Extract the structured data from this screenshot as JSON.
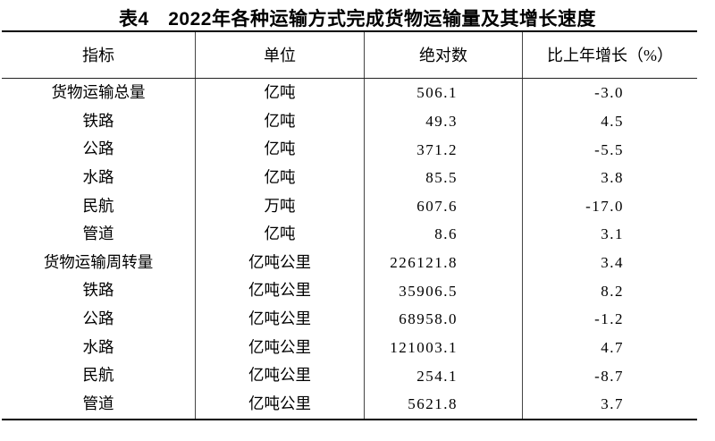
{
  "title": "表4　2022年各种运输方式完成货物运输量及其增长速度",
  "table": {
    "headers": [
      "指标",
      "单位",
      "绝对数",
      "比上年增长（%）"
    ],
    "rows": [
      {
        "indicator": "货物运输总量",
        "unit": "亿吨",
        "absolute": "506.1",
        "growth": "-3.0"
      },
      {
        "indicator": "铁路",
        "unit": "亿吨",
        "absolute": "49.3",
        "growth": "4.5"
      },
      {
        "indicator": "公路",
        "unit": "亿吨",
        "absolute": "371.2",
        "growth": "-5.5"
      },
      {
        "indicator": "水路",
        "unit": "亿吨",
        "absolute": "85.5",
        "growth": "3.8"
      },
      {
        "indicator": "民航",
        "unit": "万吨",
        "absolute": "607.6",
        "growth": "-17.0"
      },
      {
        "indicator": "管道",
        "unit": "亿吨",
        "absolute": "8.6",
        "growth": "3.1"
      },
      {
        "indicator": "货物运输周转量",
        "unit": "亿吨公里",
        "absolute": "226121.8",
        "growth": "3.4"
      },
      {
        "indicator": "铁路",
        "unit": "亿吨公里",
        "absolute": "35906.5",
        "growth": "8.2"
      },
      {
        "indicator": "公路",
        "unit": "亿吨公里",
        "absolute": "68958.0",
        "growth": "-1.2"
      },
      {
        "indicator": "水路",
        "unit": "亿吨公里",
        "absolute": "121003.1",
        "growth": "4.7"
      },
      {
        "indicator": "民航",
        "unit": "亿吨公里",
        "absolute": "254.1",
        "growth": "-8.7"
      },
      {
        "indicator": "管道",
        "unit": "亿吨公里",
        "absolute": "5621.8",
        "growth": "3.7"
      }
    ]
  }
}
